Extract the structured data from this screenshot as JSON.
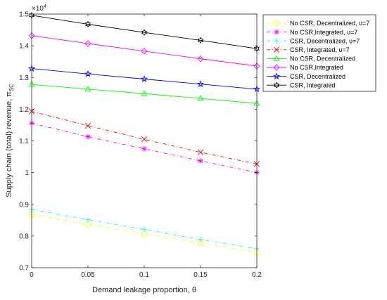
{
  "chart_data": {
    "type": "line",
    "xlabel": "Demand leakage proportion, θ",
    "ylabel": "Supply chain (total) revenue, π",
    "ylabel_sub": "SC",
    "y_multiplier": "×10",
    "y_multiplier_exp": "4",
    "x": [
      0,
      0.05,
      0.1,
      0.15,
      0.2
    ],
    "x_ticks": [
      "0",
      "0.05",
      "0.1",
      "0.15",
      "0.2"
    ],
    "xlim": [
      0,
      0.2
    ],
    "ylim": [
      0.7,
      1.5
    ],
    "y_ticks": [
      "0.7",
      "0.8",
      "0.9",
      "1",
      "1.1",
      "1.2",
      "1.3",
      "1.4",
      "1.5"
    ],
    "grid": false,
    "legend_position": "outside-right",
    "series": [
      {
        "name": "No CSR, Decentralized, υ=7",
        "color": "#ffff00",
        "marker": "circle",
        "dash": "5,3,1,3",
        "values": [
          0.868,
          0.837,
          0.807,
          0.778,
          0.748
        ]
      },
      {
        "name": "No CSR,Integrated, υ=7",
        "color": "#ff00ff",
        "marker": "asterisk",
        "dash": "5,3,1,3",
        "values": [
          1.156,
          1.113,
          1.075,
          1.037,
          1.0
        ]
      },
      {
        "name": "CSR, Decentralized, υ=7",
        "color": "#00ffff",
        "marker": "plus",
        "dash": "5,3,1,3",
        "values": [
          0.884,
          0.851,
          0.821,
          0.789,
          0.76
        ]
      },
      {
        "name": "CSR, Integrated, υ=7",
        "color": "#ff0000",
        "marker": "cross",
        "dash": "5,3,1,3",
        "values": [
          1.193,
          1.148,
          1.105,
          1.064,
          1.027
        ]
      },
      {
        "name": "No CSR, Decentralized",
        "color": "#00ff00",
        "marker": "triangle",
        "dash": "",
        "values": [
          1.278,
          1.263,
          1.249,
          1.234,
          1.218
        ]
      },
      {
        "name": "No CSR,Integrated",
        "color": "#ff00ff",
        "marker": "diamond",
        "dash": "",
        "values": [
          1.432,
          1.407,
          1.383,
          1.359,
          1.336
        ]
      },
      {
        "name": "CSR, Decentralized",
        "color": "#0000ff",
        "marker": "star",
        "dash": "",
        "values": [
          1.328,
          1.311,
          1.295,
          1.279,
          1.263
        ]
      },
      {
        "name": "CSR, Integrated",
        "color": "#000000",
        "marker": "hexagram",
        "dash": "",
        "values": [
          1.496,
          1.468,
          1.442,
          1.417,
          1.391
        ]
      }
    ]
  }
}
